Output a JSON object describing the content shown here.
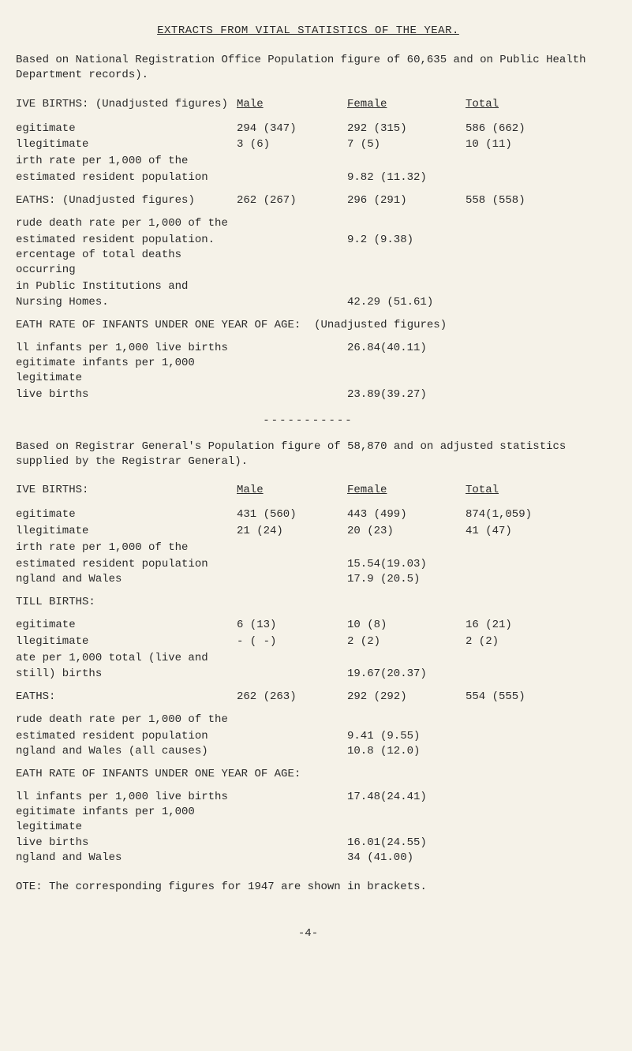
{
  "title": "EXTRACTS FROM VITAL STATISTICS OF THE YEAR.",
  "intro": "Based on National Registration Office Population figure of 60,635 and on Public Health Department records).",
  "section1": {
    "heading_prefix": "IVE BIRTHS:",
    "heading_rest": "(Unadjusted figures)",
    "cols": {
      "male": "Male",
      "female": "Female",
      "total": "Total"
    },
    "rows": [
      {
        "label": "egitimate",
        "male": "294  (347)",
        "female": "292  (315)",
        "total": "586  (662)"
      },
      {
        "label": "llegitimate",
        "male": "  3   (6)",
        "female": "  7   (5)",
        "total": " 10  (11)"
      }
    ],
    "rate_label1": "irth rate per 1,000 of the",
    "rate_label2": " estimated resident population",
    "rate_total": "9.82 (11.32)"
  },
  "deaths1": {
    "heading": "EATHS:",
    "heading_rest": "(Unadjusted figures)",
    "row": {
      "male": "262 (267)",
      "female": "296  (291)",
      "total": "558  (558)"
    },
    "crude1": "rude death rate per 1,000 of the",
    "crude2": " estimated resident population.",
    "crude_total": "9.2 (9.38)",
    "perc1": "ercentage of total deaths occurring",
    "perc2": " in Public Institutions and",
    "perc3": " Nursing Homes.",
    "perc_total": "42.29 (51.61)"
  },
  "infant_rate1": {
    "heading": "EATH RATE OF INFANTS UNDER ONE YEAR OF AGE:",
    "suffix": "(Unadjusted figures)",
    "row1_label": "ll infants per 1,000 live births",
    "row1_total": "26.84(40.11)",
    "row2_label": "egitimate infants per 1,000 legitimate",
    "row3_label": " live births",
    "row2_total": "23.89(39.27)"
  },
  "divider": "-----------",
  "intro2": "Based on Registrar General's Population figure of 58,870 and on adjusted statistics supplied by the Registrar General).",
  "section2": {
    "heading": "IVE BIRTHS:",
    "cols": {
      "male": "Male",
      "female": "Female",
      "total": "Total"
    },
    "rows": [
      {
        "label": "egitimate",
        "male": "431 (560)",
        "female": "443  (499)",
        "total": "874(1,059)"
      },
      {
        "label": "llegitimate",
        "male": " 21  (24)",
        "female": " 20  (23)",
        "total": " 41  (47)"
      }
    ],
    "rate_label1": "irth rate per 1,000 of the",
    "rate_label2": " estimated resident population",
    "rate_total": "15.54(19.03)",
    "eng_label": "ngland and Wales",
    "eng_total": "17.9 (20.5)"
  },
  "still": {
    "heading": "TILL BIRTHS:",
    "rows": [
      {
        "label": "egitimate",
        "male": "  6  (13)",
        "female": " 10   (8)",
        "total": " 16  (21)"
      },
      {
        "label": "llegitimate",
        "male": "  -  ( -)",
        "female": "  2   (2)",
        "total": "  2   (2)"
      }
    ],
    "rate_label1": "ate per 1,000 total (live and",
    "rate_label2": " still) births",
    "rate_total": "19.67(20.37)"
  },
  "deaths2": {
    "heading": "EATHS:",
    "row": {
      "male": "262 (263)",
      "female": "292  (292)",
      "total": "554  (555)"
    },
    "crude1": "rude death rate per 1,000 of the",
    "crude2": " estimated resident population",
    "crude_total": "9.41 (9.55)",
    "eng_label": "ngland and Wales (all causes)",
    "eng_total": "10.8 (12.0)"
  },
  "infant_rate2": {
    "heading": "EATH RATE OF INFANTS UNDER ONE YEAR OF AGE:",
    "row1_label": "ll infants per 1,000 live births",
    "row1_total": "17.48(24.41)",
    "row2_label": "egitimate infants per 1,000 legitimate",
    "row3_label": " live births",
    "row2_total": "16.01(24.55)",
    "eng_label": "ngland and Wales",
    "eng_total": "34  (41.00)"
  },
  "note": "OTE: The corresponding figures for 1947 are shown in brackets.",
  "pagenum": "-4-"
}
